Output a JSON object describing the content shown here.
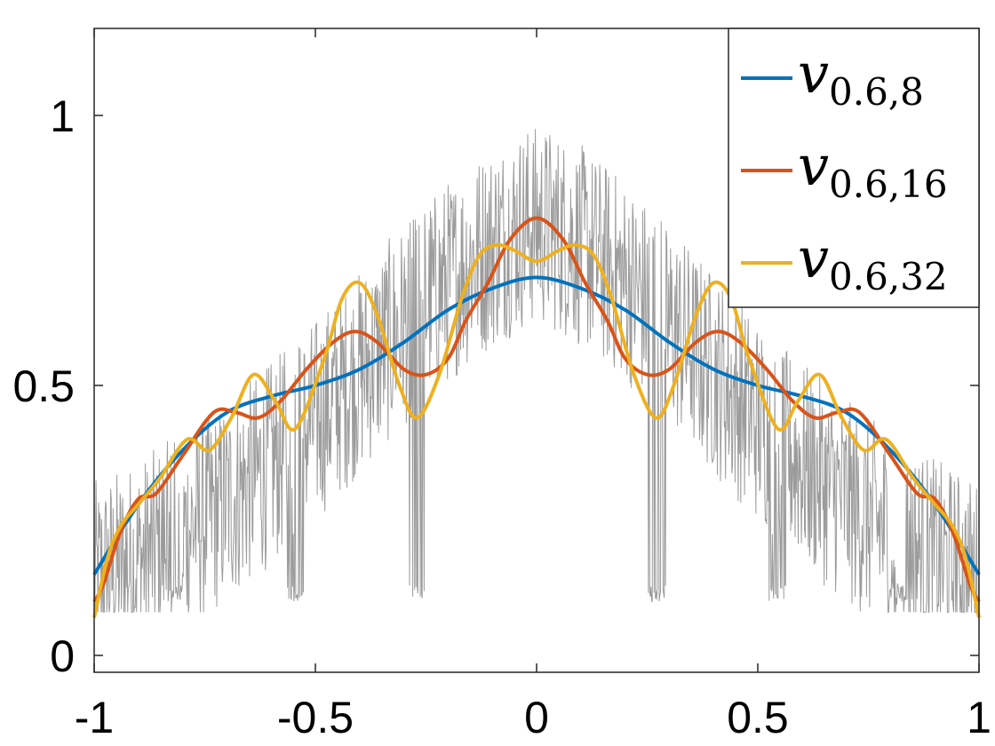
{
  "chart_data": {
    "type": "line",
    "title": "",
    "xlabel": "",
    "ylabel": "",
    "xlim": [
      -1,
      1
    ],
    "ylim": [
      -0.03,
      1.16
    ],
    "xticks": [
      -1,
      -0.5,
      0,
      0.5,
      1
    ],
    "xtick_labels": [
      "-1",
      "-0.5",
      "0",
      "0.5",
      "1"
    ],
    "yticks": [
      0,
      0.5,
      1
    ],
    "ytick_labels": [
      "0",
      "0.5",
      "1"
    ],
    "grid": false,
    "legend_position": "top-right",
    "background_curve": {
      "color": "#9b9b9b",
      "description_values": {
        "base": 0.1,
        "cap": 0.975
      }
    },
    "series": [
      {
        "name_main": "v",
        "name_sub": "0.6,8",
        "color": "#0072bd",
        "x": [
          -1,
          -0.9,
          -0.8,
          -0.7,
          -0.6,
          -0.5,
          -0.4,
          -0.3,
          -0.2,
          -0.1,
          0,
          0.1,
          0.2,
          0.3,
          0.4,
          0.5,
          0.6,
          0.7,
          0.8,
          0.9,
          1
        ],
        "y": [
          0.15,
          0.28,
          0.38,
          0.45,
          0.48,
          0.5,
          0.53,
          0.58,
          0.64,
          0.68,
          0.7,
          0.68,
          0.64,
          0.58,
          0.53,
          0.5,
          0.48,
          0.45,
          0.38,
          0.28,
          0.15
        ]
      },
      {
        "name_main": "v",
        "name_sub": "0.6,16",
        "color": "#d95319",
        "x": [
          -1,
          -0.98,
          -0.94,
          -0.9,
          -0.86,
          -0.8,
          -0.73,
          -0.68,
          -0.63,
          -0.58,
          -0.52,
          -0.46,
          -0.41,
          -0.36,
          -0.3,
          -0.25,
          -0.2,
          -0.16,
          -0.11,
          -0.06,
          0,
          0.06,
          0.11,
          0.16,
          0.2,
          0.25,
          0.3,
          0.36,
          0.41,
          0.46,
          0.52,
          0.58,
          0.63,
          0.68,
          0.73,
          0.8,
          0.86,
          0.9,
          0.94,
          0.98,
          1
        ],
        "y": [
          0.1,
          0.13,
          0.23,
          0.29,
          0.3,
          0.37,
          0.45,
          0.45,
          0.44,
          0.47,
          0.53,
          0.58,
          0.6,
          0.58,
          0.53,
          0.52,
          0.55,
          0.62,
          0.69,
          0.77,
          0.81,
          0.77,
          0.69,
          0.62,
          0.55,
          0.52,
          0.53,
          0.58,
          0.6,
          0.58,
          0.53,
          0.47,
          0.44,
          0.45,
          0.45,
          0.37,
          0.3,
          0.29,
          0.23,
          0.13,
          0.1
        ]
      },
      {
        "name_main": "v",
        "name_sub": "0.6,32",
        "color": "#edb120",
        "x": [
          -1,
          -0.97,
          -0.94,
          -0.9,
          -0.85,
          -0.79,
          -0.74,
          -0.69,
          -0.64,
          -0.59,
          -0.545,
          -0.48,
          -0.44,
          -0.4,
          -0.36,
          -0.31,
          -0.27,
          -0.22,
          -0.17,
          -0.13,
          -0.09,
          -0.05,
          0,
          0.05,
          0.09,
          0.13,
          0.17,
          0.22,
          0.27,
          0.31,
          0.36,
          0.4,
          0.44,
          0.48,
          0.545,
          0.59,
          0.64,
          0.69,
          0.74,
          0.79,
          0.85,
          0.9,
          0.94,
          0.97,
          1
        ],
        "y": [
          0.07,
          0.18,
          0.24,
          0.28,
          0.33,
          0.4,
          0.38,
          0.44,
          0.52,
          0.47,
          0.42,
          0.55,
          0.66,
          0.69,
          0.63,
          0.5,
          0.44,
          0.52,
          0.66,
          0.74,
          0.76,
          0.75,
          0.73,
          0.75,
          0.76,
          0.74,
          0.66,
          0.52,
          0.44,
          0.5,
          0.63,
          0.69,
          0.66,
          0.55,
          0.42,
          0.47,
          0.52,
          0.44,
          0.38,
          0.4,
          0.33,
          0.28,
          0.24,
          0.18,
          0.07
        ]
      }
    ]
  }
}
